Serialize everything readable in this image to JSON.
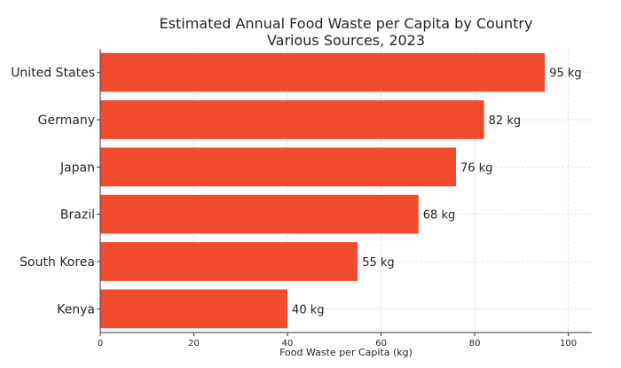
{
  "chart_data": {
    "type": "bar",
    "orientation": "horizontal",
    "title": "Estimated Annual Food Waste per Capita by Country",
    "subtitle": "Various Sources, 2023",
    "xlabel": "Food Waste per Capita (kg)",
    "ylabel": "",
    "categories": [
      "United States",
      "Germany",
      "Japan",
      "Brazil",
      "South Korea",
      "Kenya"
    ],
    "values": [
      95,
      82,
      76,
      68,
      55,
      40
    ],
    "data_labels": [
      "95 kg",
      "82 kg",
      "76 kg",
      "68 kg",
      "55 kg",
      "40 kg"
    ],
    "xticks": [
      0,
      20,
      40,
      60,
      80,
      100
    ],
    "xlim": [
      0,
      105
    ],
    "grid": true,
    "bar_color": "#F24C2E"
  }
}
